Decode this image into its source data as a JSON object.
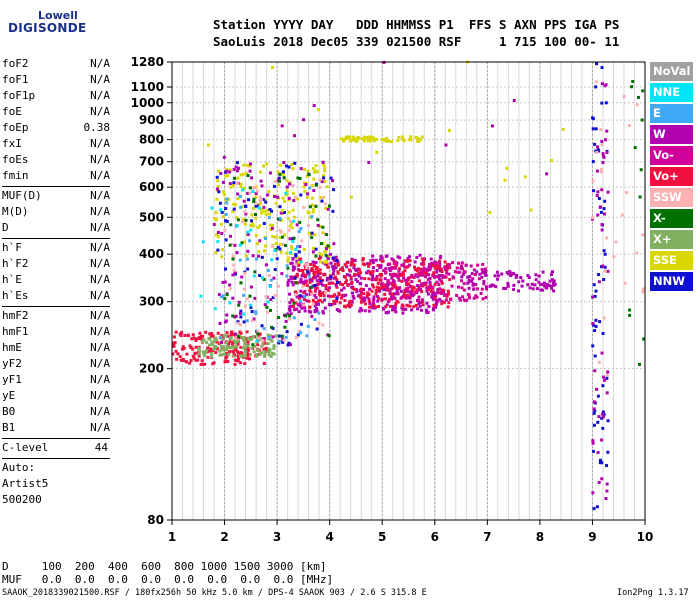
{
  "logo": {
    "line1": "Lowell",
    "line2": "DIGISONDE"
  },
  "header": {
    "line1": "Station YYYY DAY   DDD HHMMSS P1  FFS S AXN PPS IGA PS",
    "line2": "SaoLuis 2018 Dec05 339 021500 RSF     1 715 100 00- 11"
  },
  "params_group1": [
    {
      "name": "foF2",
      "value": "N/A"
    },
    {
      "name": "foF1",
      "value": "N/A"
    },
    {
      "name": "foF1p",
      "value": "N/A"
    },
    {
      "name": "foE",
      "value": "N/A"
    },
    {
      "name": "foEp",
      "value": "0.38"
    },
    {
      "name": "fxI",
      "value": "N/A"
    },
    {
      "name": "foEs",
      "value": "N/A"
    },
    {
      "name": "fmin",
      "value": "N/A"
    }
  ],
  "params_group2": [
    {
      "name": "MUF(D)",
      "value": "N/A"
    },
    {
      "name": "M(D)",
      "value": "N/A"
    },
    {
      "name": "D",
      "value": "N/A"
    }
  ],
  "params_group3": [
    {
      "name": "h`F",
      "value": "N/A"
    },
    {
      "name": "h`F2",
      "value": "N/A"
    },
    {
      "name": "h`E",
      "value": "N/A"
    },
    {
      "name": "h`Es",
      "value": "N/A"
    }
  ],
  "params_group4": [
    {
      "name": "hmF2",
      "value": "N/A"
    },
    {
      "name": "hmF1",
      "value": "N/A"
    },
    {
      "name": "hmE",
      "value": "N/A"
    },
    {
      "name": "yF2",
      "value": "N/A"
    },
    {
      "name": "yF1",
      "value": "N/A"
    },
    {
      "name": "yE",
      "value": "N/A"
    },
    {
      "name": "B0",
      "value": "N/A"
    },
    {
      "name": "B1",
      "value": "N/A"
    }
  ],
  "clevel": {
    "name": "C-level",
    "value": "44"
  },
  "auto": [
    "Auto:",
    "Artist5",
    "500200"
  ],
  "footer": {
    "d_line": "D     100  200  400  600  800 1000 1500 3000 [km]",
    "muf_line": "MUF   0.0  0.0  0.0  0.0  0.0  0.0  0.0  0.0 [MHz]",
    "file_line": "SAAOK_2018339021500.RSF / 180fx256h 50 kHz 5.0 km / DPS-4 SAAOK 903 / 2.6 S 315.8 E",
    "version": "Ion2Png 1.3.17"
  },
  "legend": [
    {
      "label": "NoVal",
      "color": "#a0a0a0"
    },
    {
      "label": "NNE",
      "color": "#00e5f5"
    },
    {
      "label": "E",
      "color": "#3fa9f5"
    },
    {
      "label": "W",
      "color": "#b000b0"
    },
    {
      "label": "Vo-",
      "color": "#d0009a"
    },
    {
      "label": "Vo+",
      "color": "#f01040"
    },
    {
      "label": "SSW",
      "color": "#ffb0b0"
    },
    {
      "label": "X-",
      "color": "#007000"
    },
    {
      "label": "X+",
      "color": "#80b060"
    },
    {
      "label": "SSE",
      "color": "#d8d800"
    },
    {
      "label": "NNW",
      "color": "#1010d0"
    }
  ],
  "chart_data": {
    "type": "scatter",
    "title": "",
    "xlabel": "",
    "ylabel": "",
    "xlim": [
      1,
      10
    ],
    "ylim": [
      80,
      1280
    ],
    "y_scale": "log",
    "grid": true,
    "x_ticks": [
      1,
      2,
      3,
      4,
      5,
      6,
      7,
      8,
      9,
      10
    ],
    "y_ticks": [
      80,
      200,
      300,
      400,
      500,
      600,
      700,
      800,
      900,
      1000,
      1100,
      1280
    ],
    "regions": [
      {
        "series": "Vo+",
        "freq_range": [
          1.0,
          2.8
        ],
        "height_range": [
          205,
          250
        ],
        "n": 180
      },
      {
        "series": "X+",
        "freq_range": [
          1.5,
          3.0
        ],
        "height_range": [
          215,
          245
        ],
        "n": 120
      },
      {
        "series": "W",
        "freq_range": [
          3.2,
          6.2
        ],
        "height_range": [
          280,
          400
        ],
        "n": 380
      },
      {
        "series": "Vo+",
        "freq_range": [
          3.3,
          6.3
        ],
        "height_range": [
          290,
          390
        ],
        "n": 320
      },
      {
        "series": "Vo-",
        "freq_range": [
          5.0,
          7.0
        ],
        "height_range": [
          300,
          380
        ],
        "n": 160
      },
      {
        "series": "W",
        "freq_range": [
          6.5,
          8.3
        ],
        "height_range": [
          320,
          360
        ],
        "n": 90
      },
      {
        "series": "SSE",
        "freq_range": [
          1.8,
          4.0
        ],
        "height_range": [
          380,
          700
        ],
        "n": 180
      },
      {
        "series": "NNW",
        "freq_range": [
          1.8,
          4.2
        ],
        "height_range": [
          230,
          700
        ],
        "n": 90
      },
      {
        "series": "W",
        "freq_range": [
          1.8,
          4.2
        ],
        "height_range": [
          230,
          700
        ],
        "n": 110
      },
      {
        "series": "SSW",
        "freq_range": [
          2.0,
          4.0
        ],
        "height_range": [
          230,
          650
        ],
        "n": 70
      },
      {
        "series": "X-",
        "freq_range": [
          2.0,
          4.0
        ],
        "height_range": [
          230,
          650
        ],
        "n": 60
      },
      {
        "series": "E",
        "freq_range": [
          1.8,
          3.8
        ],
        "height_range": [
          230,
          600
        ],
        "n": 40
      },
      {
        "series": "NNE",
        "freq_range": [
          1.5,
          3.5
        ],
        "height_range": [
          230,
          600
        ],
        "n": 30
      },
      {
        "series": "SSE",
        "freq_range": [
          4.2,
          5.8
        ],
        "height_range": [
          790,
          815
        ],
        "n": 60
      },
      {
        "series": "NNW",
        "freq_range": [
          9.0,
          9.3
        ],
        "height_range": [
          85,
          1280
        ],
        "n": 60
      },
      {
        "series": "W",
        "freq_range": [
          9.0,
          9.3
        ],
        "height_range": [
          85,
          1280
        ],
        "n": 50
      },
      {
        "series": "SSW",
        "freq_range": [
          9.0,
          10.0
        ],
        "height_range": [
          180,
          1200
        ],
        "n": 25
      },
      {
        "series": "X-",
        "freq_range": [
          9.7,
          10.0
        ],
        "height_range": [
          200,
          1280
        ],
        "n": 12
      },
      {
        "series": "SSE",
        "freq_range": [
          1.5,
          8.5
        ],
        "height_range": [
          500,
          1280
        ],
        "n": 18
      },
      {
        "series": "W",
        "freq_range": [
          1.5,
          8.5
        ],
        "height_range": [
          600,
          1280
        ],
        "n": 14
      }
    ]
  }
}
